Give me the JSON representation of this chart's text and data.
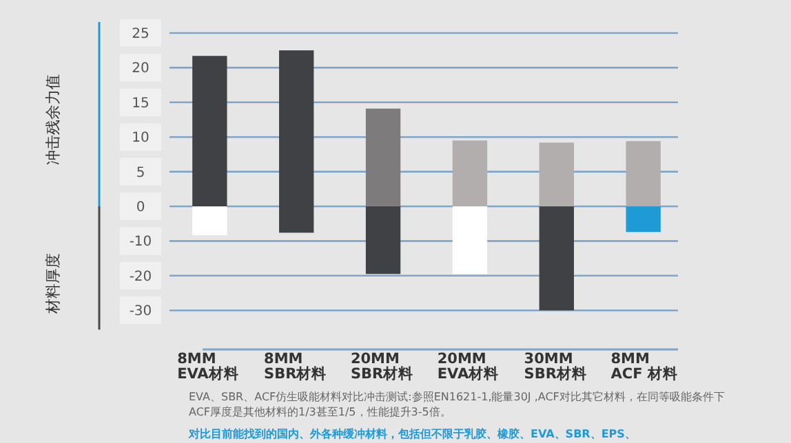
{
  "chart_data": [
    {
      "type": "bar",
      "grid": "y",
      "tick_labels": "y",
      "categories": [
        null,
        null,
        null,
        null,
        null,
        null
      ],
      "series": [
        {
          "name": "冲击残余力值",
          "color": "#1e9ad6",
          "colors": [
            "#3f4144",
            "#3f4144",
            "#7d7b7c",
            "#b2aeae",
            "#b2aeae",
            "#b2aeae"
          ],
          "values": [
            21.7,
            22.5,
            14.1,
            9.5,
            9.2,
            9.4
          ]
        }
      ],
      "ylim": [
        0,
        25
      ],
      "yticks": [
        0,
        5,
        10,
        15,
        20,
        25
      ]
    },
    {
      "type": "bar",
      "grid": "y",
      "categories": [
        "8MM\nEVA材料",
        "8MM\nSBR材料",
        "20MM\nSBR材料",
        "20MM\nEVA材料",
        "30MM\nSBR材料",
        "8MM\nACF 材料"
      ],
      "series": [
        {
          "name": "材料厚度",
          "color": "#4a4a4a",
          "colors": [
            "#ffffff",
            "#3f4144",
            "#3f4144",
            "#ffffff",
            "#3f4144",
            "#1e9ad6"
          ],
          "values": [
            -8.3,
            -7.6,
            -19.5,
            -19.5,
            -30,
            -7.4
          ]
        }
      ],
      "ylim": [
        -30,
        0
      ],
      "yticks": [
        -10,
        -20,
        -30
      ],
      "annotations": [
        "EVA、SBR、ACF仿生吸能材料对比冲击测试:参照EN1621-1,能量30J ,ACF对比其它材料，在同等吸能条件下\nACF厚度是其他材料的1/3甚至1/5，性能提升3-5倍。",
        "对比目前能找到的国内、外各种缓冲材料，包括但不限于乳胶、橡胶、EVA、SBR、EPS、"
      ]
    }
  ]
}
